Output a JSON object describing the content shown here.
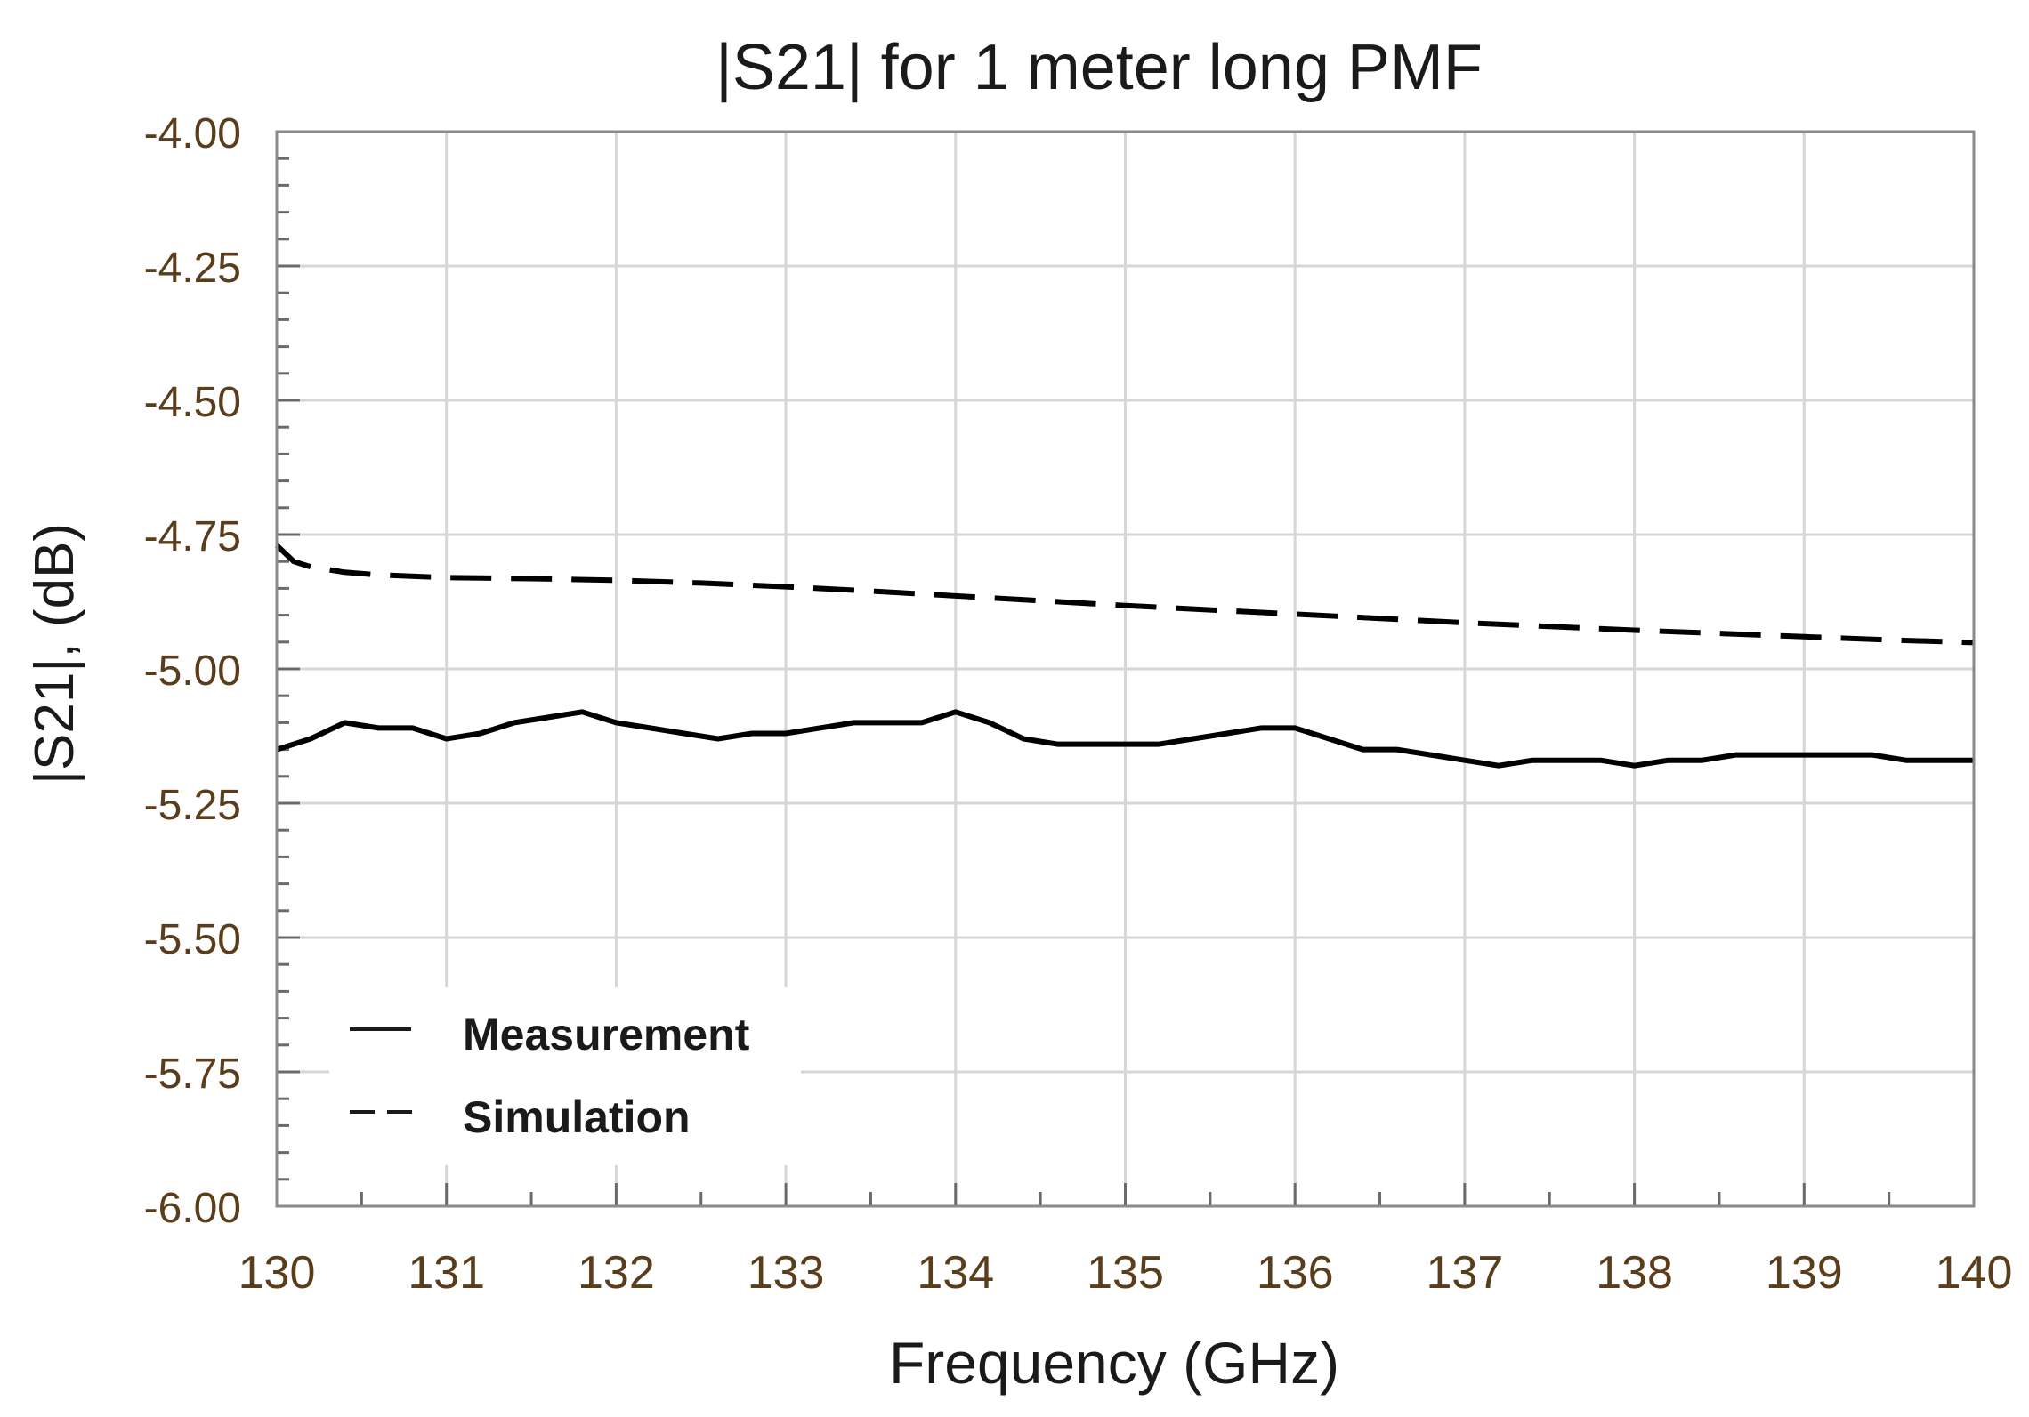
{
  "chart_data": {
    "type": "line",
    "title": "|S21| for 1 meter long PMF",
    "xlabel": "Frequency (GHz)",
    "ylabel": "|S21|, (dB)",
    "xlim": [
      130,
      140
    ],
    "ylim": [
      -6.0,
      -4.0
    ],
    "xticks": [
      130,
      131,
      132,
      133,
      134,
      135,
      136,
      137,
      138,
      139,
      140
    ],
    "xtick_labels": [
      "130",
      "131",
      "132",
      "133",
      "134",
      "135",
      "136",
      "137",
      "138",
      "139",
      "140"
    ],
    "yticks": [
      -4.0,
      -4.25,
      -4.5,
      -4.75,
      -5.0,
      -5.25,
      -5.5,
      -5.75,
      -6.0
    ],
    "ytick_labels": [
      "-4.00",
      "-4.25",
      "-4.50",
      "-4.75",
      "-5.00",
      "-5.25",
      "-5.50",
      "-5.75",
      "-6.00"
    ],
    "grid": true,
    "legend_position": "bottom-left",
    "series": [
      {
        "name": "Measurement",
        "style": "solid",
        "color": "#000000",
        "x": [
          130.0,
          130.2,
          130.4,
          130.6,
          130.8,
          131.0,
          131.2,
          131.4,
          131.6,
          131.8,
          132.0,
          132.2,
          132.4,
          132.6,
          132.8,
          133.0,
          133.2,
          133.4,
          133.6,
          133.8,
          134.0,
          134.2,
          134.4,
          134.6,
          134.8,
          135.0,
          135.2,
          135.4,
          135.6,
          135.8,
          136.0,
          136.2,
          136.4,
          136.6,
          136.8,
          137.0,
          137.2,
          137.4,
          137.6,
          137.8,
          138.0,
          138.2,
          138.4,
          138.6,
          138.8,
          139.0,
          139.2,
          139.4,
          139.6,
          139.8,
          140.0
        ],
        "y": [
          -5.15,
          -5.13,
          -5.1,
          -5.11,
          -5.11,
          -5.13,
          -5.12,
          -5.1,
          -5.09,
          -5.08,
          -5.1,
          -5.11,
          -5.12,
          -5.13,
          -5.12,
          -5.12,
          -5.11,
          -5.1,
          -5.1,
          -5.1,
          -5.08,
          -5.1,
          -5.13,
          -5.14,
          -5.14,
          -5.14,
          -5.14,
          -5.13,
          -5.12,
          -5.11,
          -5.11,
          -5.13,
          -5.15,
          -5.15,
          -5.16,
          -5.17,
          -5.18,
          -5.17,
          -5.17,
          -5.17,
          -5.18,
          -5.17,
          -5.17,
          -5.16,
          -5.16,
          -5.16,
          -5.16,
          -5.16,
          -5.17,
          -5.17,
          -5.17
        ]
      },
      {
        "name": "Simulation",
        "style": "dashed",
        "color": "#000000",
        "x": [
          130.0,
          130.1,
          130.2,
          130.4,
          130.6,
          131.0,
          131.5,
          132.0,
          132.5,
          133.0,
          133.5,
          134.0,
          134.5,
          135.0,
          135.5,
          136.0,
          136.5,
          137.0,
          137.5,
          138.0,
          138.5,
          139.0,
          139.5,
          140.0
        ],
        "y": [
          -4.77,
          -4.8,
          -4.81,
          -4.82,
          -4.825,
          -4.83,
          -4.832,
          -4.835,
          -4.84,
          -4.847,
          -4.855,
          -4.864,
          -4.873,
          -4.882,
          -4.89,
          -4.898,
          -4.906,
          -4.914,
          -4.921,
          -4.928,
          -4.934,
          -4.94,
          -4.946,
          -4.951
        ]
      }
    ]
  }
}
